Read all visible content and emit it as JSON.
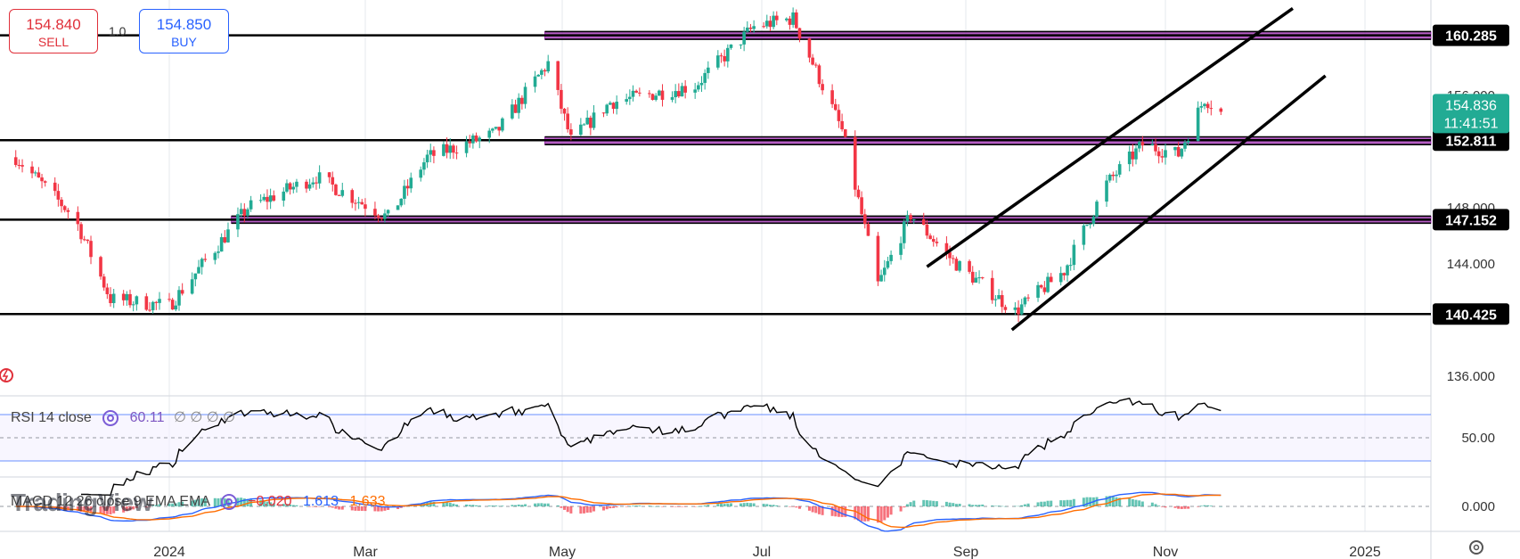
{
  "trade": {
    "sell_price": "154.840",
    "sell_label": "SELL",
    "buy_price": "154.850",
    "buy_label": "BUY",
    "quantity": "1.0"
  },
  "rsi": {
    "label": "RSI 14 close",
    "value": "60.11",
    "extra": "∅ ∅ ∅ ∅"
  },
  "macd": {
    "label": "MACD 12 26 close 9 EMA EMA",
    "hist": "−0.020",
    "macd": "1.613",
    "signal": "1.633"
  },
  "watermark": "TradingView",
  "colors": {
    "up": "#22ab94",
    "down": "#f23645",
    "zone": "#9c27b0",
    "line": "#000000",
    "rsi_band": "#2962ff",
    "macd_line": "#2962ff",
    "signal_line": "#ff6d00",
    "current_price_bg": "#22ab94"
  },
  "chart_data": {
    "type": "candlestick",
    "symbol_pane_axis": {
      "ticks": [
        136.0,
        140.0,
        144.0,
        148.0,
        152.0,
        156.0,
        160.0
      ],
      "tick_labels": [
        "136.000",
        "",
        "144.000",
        "148.000",
        "",
        "156.000",
        ""
      ],
      "ylim": [
        134.6,
        162.8
      ]
    },
    "x_axis": {
      "labels": [
        "2024",
        "Mar",
        "May",
        "Jul",
        "Sep",
        "Nov",
        "2025"
      ]
    },
    "price_labels": [
      {
        "value": 160.285,
        "label": "160.285"
      },
      {
        "value": 152.811,
        "label": "152.811"
      },
      {
        "value": 147.152,
        "label": "147.152"
      },
      {
        "value": 140.425,
        "label": "140.425"
      }
    ],
    "current_price": {
      "value": 154.836,
      "label": "154.836",
      "countdown": "11:41:51"
    },
    "support_resistance_lines": [
      140.425,
      147.152,
      152.811,
      160.285
    ],
    "zones": [
      {
        "name": "zone-160",
        "low": 160.0,
        "high": 160.55,
        "from": "late Apr"
      },
      {
        "name": "zone-153",
        "low": 152.5,
        "high": 153.05,
        "from": "late Apr"
      },
      {
        "name": "zone-147",
        "low": 146.9,
        "high": 147.4,
        "from": "Jan"
      }
    ],
    "channel": {
      "upper": {
        "from": {
          "date": "Aug 20",
          "price": 143.8
        },
        "to": {
          "date": "Dec 10",
          "price": 162.2
        }
      },
      "lower": {
        "from": {
          "date": "Sep 15",
          "price": 139.3
        },
        "to": {
          "date": "Dec 20",
          "price": 157.4
        }
      }
    },
    "anchors": [
      {
        "date": "Nov 15 2023",
        "close": 151.6
      },
      {
        "date": "Dec 3 2023",
        "close": 147.3
      },
      {
        "date": "Dec 14 2023",
        "close": 141.5
      },
      {
        "date": "Jan 1 2024",
        "close": 141.0
      },
      {
        "date": "Jan 25 2024",
        "close": 148.0
      },
      {
        "date": "Feb 15 2024",
        "close": 150.2
      },
      {
        "date": "Mar 8 2024",
        "close": 147.3
      },
      {
        "date": "Mar 20 2024",
        "close": 151.6
      },
      {
        "date": "Apr 10 2024",
        "close": 153.3
      },
      {
        "date": "Apr 26 2024",
        "close": 158.3
      },
      {
        "date": "May 3 2024",
        "close": 152.8
      },
      {
        "date": "May 15 2024",
        "close": 155.5
      },
      {
        "date": "Jun 10 2024",
        "close": 156.7
      },
      {
        "date": "Jun 28 2024",
        "close": 160.9
      },
      {
        "date": "Jul 10 2024",
        "close": 161.5
      },
      {
        "date": "Jul 25 2024",
        "close": 153.5
      },
      {
        "date": "Aug 5 2024",
        "close": 142.5
      },
      {
        "date": "Aug 15 2024",
        "close": 147.5
      },
      {
        "date": "Aug 28 2024",
        "close": 144.2
      },
      {
        "date": "Sep 16 2024",
        "close": 140.6
      },
      {
        "date": "Oct 1 2024",
        "close": 143.5
      },
      {
        "date": "Oct 14 2024",
        "close": 149.7
      },
      {
        "date": "Oct 25 2024",
        "close": 152.5
      },
      {
        "date": "Nov 5 2024",
        "close": 151.8
      },
      {
        "date": "Nov 13 2024",
        "close": 155.8
      },
      {
        "date": "Nov 18 2024",
        "close": 154.836
      }
    ],
    "rsi_pane": {
      "ticks": [
        50.0
      ],
      "tick_labels": [
        "50.00"
      ],
      "upper_band": 70,
      "lower_band": 30,
      "mid": 50
    },
    "macd_pane": {
      "ticks": [
        0.0
      ],
      "tick_labels": [
        "0.000"
      ]
    }
  }
}
